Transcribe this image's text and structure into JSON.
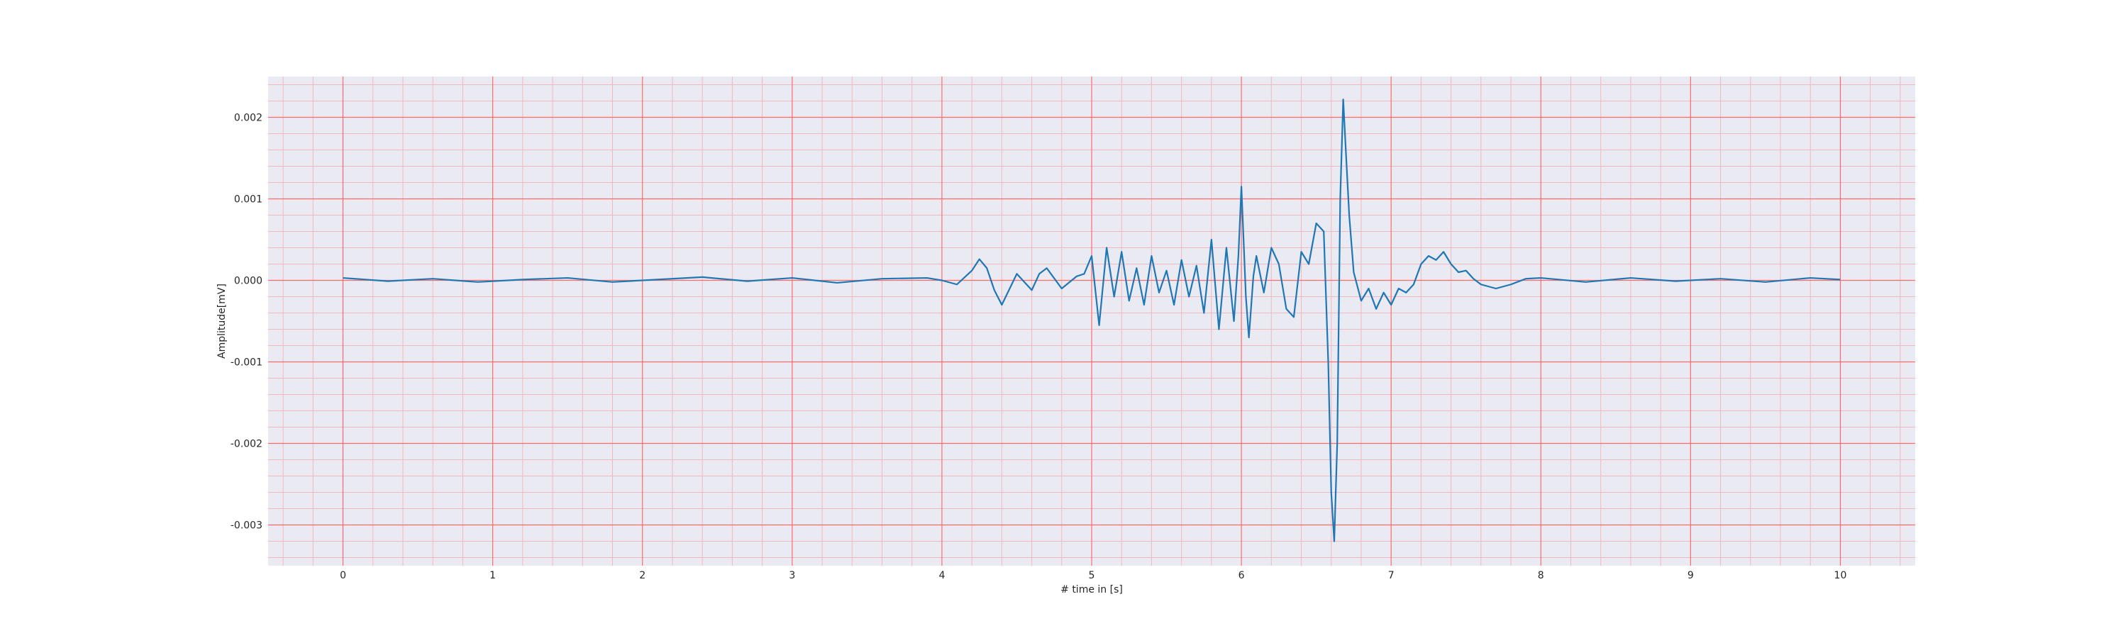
{
  "chart_data": {
    "type": "line",
    "title": "",
    "xlabel": "# time in [s]",
    "ylabel": "Amplitude[mV]",
    "xlim": [
      -0.5,
      10.5
    ],
    "ylim": [
      -0.0035,
      0.0025
    ],
    "xticks": [
      0,
      1,
      2,
      3,
      4,
      5,
      6,
      7,
      8,
      9,
      10
    ],
    "xtick_labels": [
      "0",
      "1",
      "2",
      "3",
      "4",
      "5",
      "6",
      "7",
      "8",
      "9",
      "10"
    ],
    "yticks": [
      -0.003,
      -0.002,
      -0.001,
      0.0,
      0.001,
      0.002
    ],
    "ytick_labels": [
      "-0.003",
      "-0.002",
      "-0.001",
      "0.000",
      "0.001",
      "0.002"
    ],
    "grid": "major and minor",
    "colors": {
      "background": "#eaeaf2",
      "major_grid": "#ff6b6b",
      "minor_grid": "#f2b8c0",
      "line": "#1f77b4"
    },
    "series": [
      {
        "x": [
          0.0,
          0.3,
          0.6,
          0.9,
          1.2,
          1.5,
          1.8,
          2.1,
          2.4,
          2.7,
          3.0,
          3.3,
          3.6,
          3.9,
          4.0,
          4.1,
          4.2,
          4.25,
          4.3,
          4.35,
          4.4,
          4.5,
          4.6,
          4.65,
          4.7,
          4.8,
          4.9,
          4.95,
          5.0,
          5.05,
          5.1,
          5.15,
          5.2,
          5.25,
          5.3,
          5.35,
          5.4,
          5.45,
          5.5,
          5.55,
          5.6,
          5.65,
          5.7,
          5.75,
          5.8,
          5.85,
          5.9,
          5.95,
          5.98,
          6.0,
          6.03,
          6.05,
          6.08,
          6.1,
          6.15,
          6.2,
          6.25,
          6.3,
          6.35,
          6.4,
          6.45,
          6.5,
          6.55,
          6.58,
          6.6,
          6.62,
          6.64,
          6.66,
          6.68,
          6.7,
          6.72,
          6.75,
          6.8,
          6.85,
          6.9,
          6.95,
          7.0,
          7.05,
          7.1,
          7.15,
          7.2,
          7.25,
          7.3,
          7.35,
          7.4,
          7.45,
          7.5,
          7.55,
          7.6,
          7.7,
          7.8,
          7.9,
          8.0,
          8.3,
          8.6,
          8.9,
          9.2,
          9.5,
          9.8,
          10.0
        ],
        "y": [
          3e-05,
          -1e-05,
          2e-05,
          -2e-05,
          1e-05,
          3e-05,
          -2e-05,
          1e-05,
          4e-05,
          -1e-05,
          3e-05,
          -3e-05,
          2e-05,
          3e-05,
          0.0,
          -5e-05,
          0.00012,
          0.00026,
          0.00015,
          -0.00012,
          -0.0003,
          8e-05,
          -0.00012,
          8e-05,
          0.00015,
          -0.0001,
          5e-05,
          8e-05,
          0.0003,
          -0.00055,
          0.0004,
          -0.0002,
          0.00035,
          -0.00025,
          0.00015,
          -0.0003,
          0.0003,
          -0.00015,
          0.00012,
          -0.0003,
          0.00025,
          -0.0002,
          0.00018,
          -0.0004,
          0.0005,
          -0.0006,
          0.0004,
          -0.0005,
          0.0003,
          0.00115,
          -0.0002,
          -0.0007,
          5e-05,
          0.0003,
          -0.00015,
          0.0004,
          0.0002,
          -0.00035,
          -0.00045,
          0.00035,
          0.0002,
          0.0007,
          0.0006,
          -0.001,
          -0.0026,
          -0.0032,
          -0.002,
          0.001,
          0.00222,
          0.0015,
          0.0008,
          0.0001,
          -0.00025,
          -0.0001,
          -0.00035,
          -0.00015,
          -0.0003,
          -0.0001,
          -0.00015,
          -5e-05,
          0.0002,
          0.0003,
          0.00025,
          0.00035,
          0.0002,
          0.0001,
          0.00012,
          2e-05,
          -5e-05,
          -0.0001,
          -5e-05,
          2e-05,
          3e-05,
          -2e-05,
          3e-05,
          -1e-05,
          2e-05,
          -2e-05,
          3e-05,
          1e-05
        ]
      }
    ]
  }
}
